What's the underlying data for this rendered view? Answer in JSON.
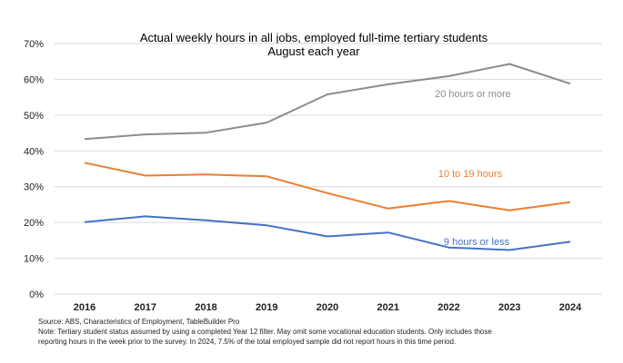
{
  "chart_data": {
    "type": "line",
    "title": "Actual weekly hours in all jobs, employed full-time tertiary students",
    "subtitle": "August each year",
    "categories": [
      "2016",
      "2017",
      "2018",
      "2019",
      "2020",
      "2021",
      "2022",
      "2023",
      "2024"
    ],
    "ylim": [
      0,
      70
    ],
    "yticks": [
      0,
      10,
      20,
      30,
      40,
      50,
      60,
      70
    ],
    "ytick_labels": [
      "0%",
      "10%",
      "20%",
      "30%",
      "40%",
      "50%",
      "60%",
      "70%"
    ],
    "grid": true,
    "series": [
      {
        "name": "20 hours or more",
        "color": "#8c8c8c",
        "values": [
          43.3,
          44.6,
          45.1,
          47.9,
          55.8,
          58.6,
          60.9,
          64.3,
          58.8
        ]
      },
      {
        "name": "10 to 19 hours",
        "color": "#ed7d31",
        "values": [
          36.7,
          33.1,
          33.4,
          32.9,
          28.2,
          23.9,
          26.0,
          23.4,
          25.7
        ]
      },
      {
        "name": "9 hours or less",
        "color": "#4472c4",
        "values": [
          20.1,
          21.7,
          20.6,
          19.2,
          16.1,
          17.2,
          13.0,
          12.3,
          14.6
        ]
      }
    ]
  },
  "notes": {
    "source": "Source: ABS, Characteristics of Employment, TableBuilder Pro",
    "note_line1": "Note: Tertiary student status assumed by using a completed Year 12 filter. May omit some vocational education students. Only includes those",
    "note_line2": "reporting hours in the week prior to the survey. In 2024, 7.5% of the total employed sample did not report hours in this time period."
  }
}
